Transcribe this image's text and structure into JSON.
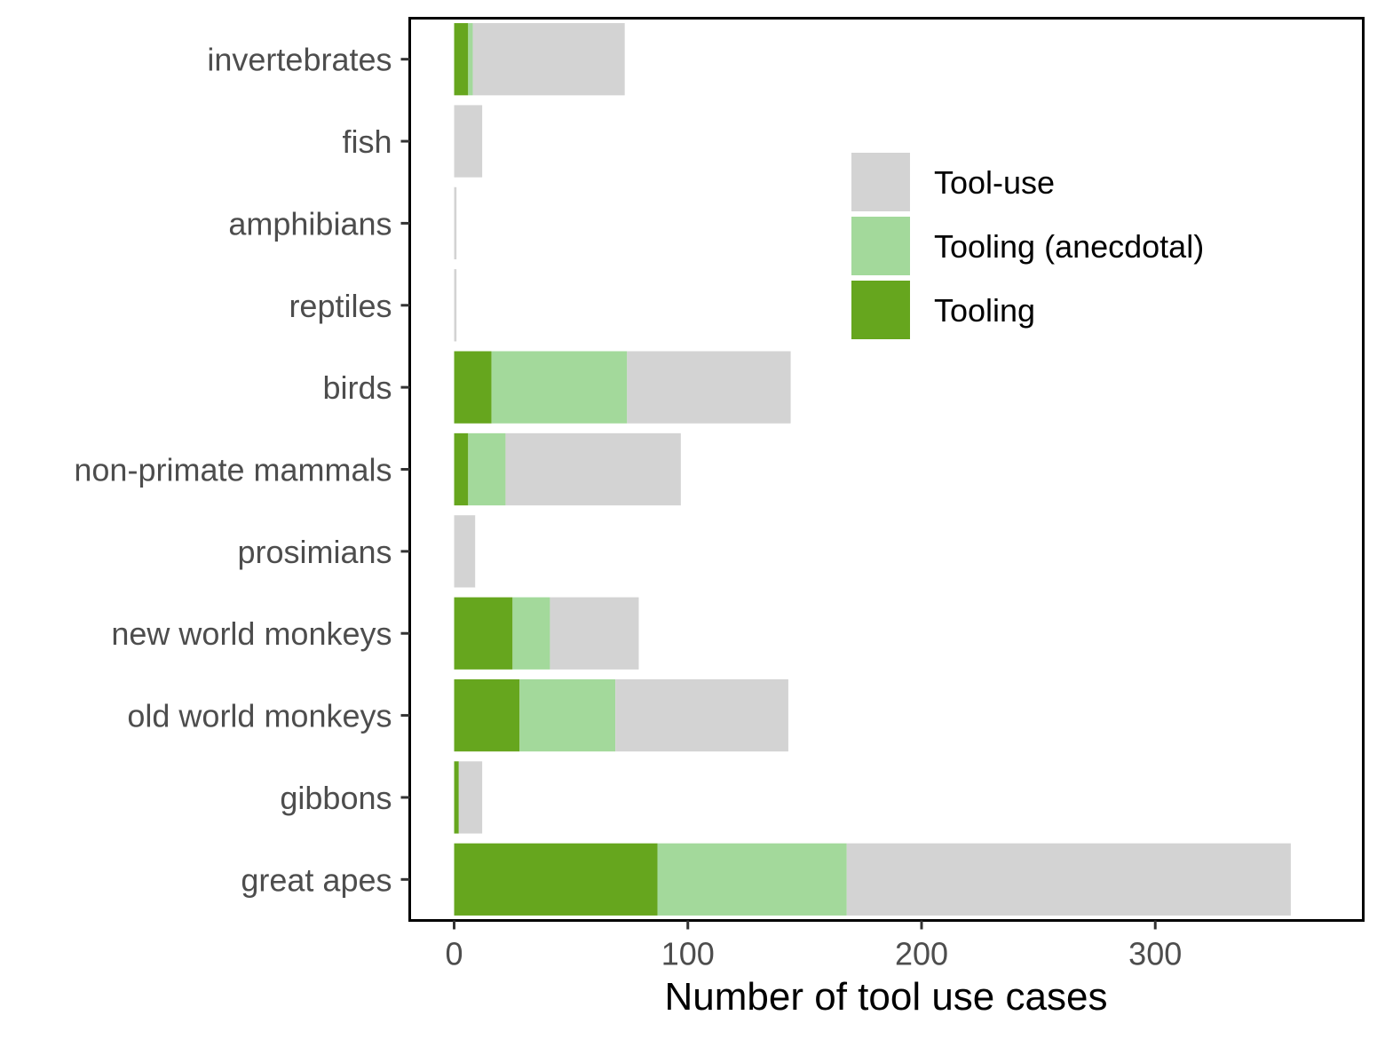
{
  "chart_data": {
    "type": "bar",
    "orientation": "horizontal",
    "stacked": true,
    "categories": [
      "invertebrates",
      "fish",
      "amphibians",
      "reptiles",
      "birds",
      "non-primate mammals",
      "prosimians",
      "new world monkeys",
      "old world monkeys",
      "gibbons",
      "great apes"
    ],
    "series": [
      {
        "name": "Tooling",
        "color": "#66a61e",
        "values": [
          6,
          0,
          0,
          0,
          16,
          6,
          0,
          25,
          28,
          2,
          87
        ]
      },
      {
        "name": "Tooling (anecdotal)",
        "color": "#a3d99b",
        "values": [
          2,
          0,
          0,
          0,
          58,
          16,
          0,
          16,
          41,
          0,
          81
        ]
      },
      {
        "name": "Tool-use",
        "color": "#d3d3d3",
        "values": [
          65,
          12,
          1,
          1,
          70,
          75,
          9,
          38,
          74,
          10,
          190
        ]
      }
    ],
    "xlabel": "Number of tool use cases",
    "ylabel": "",
    "xlim": [
      -19,
      389
    ],
    "xticks": [
      0,
      100,
      200,
      300
    ],
    "grid": false,
    "legend_position": "top-right",
    "legend_order": [
      "Tool-use",
      "Tooling (anecdotal)",
      "Tooling"
    ]
  }
}
